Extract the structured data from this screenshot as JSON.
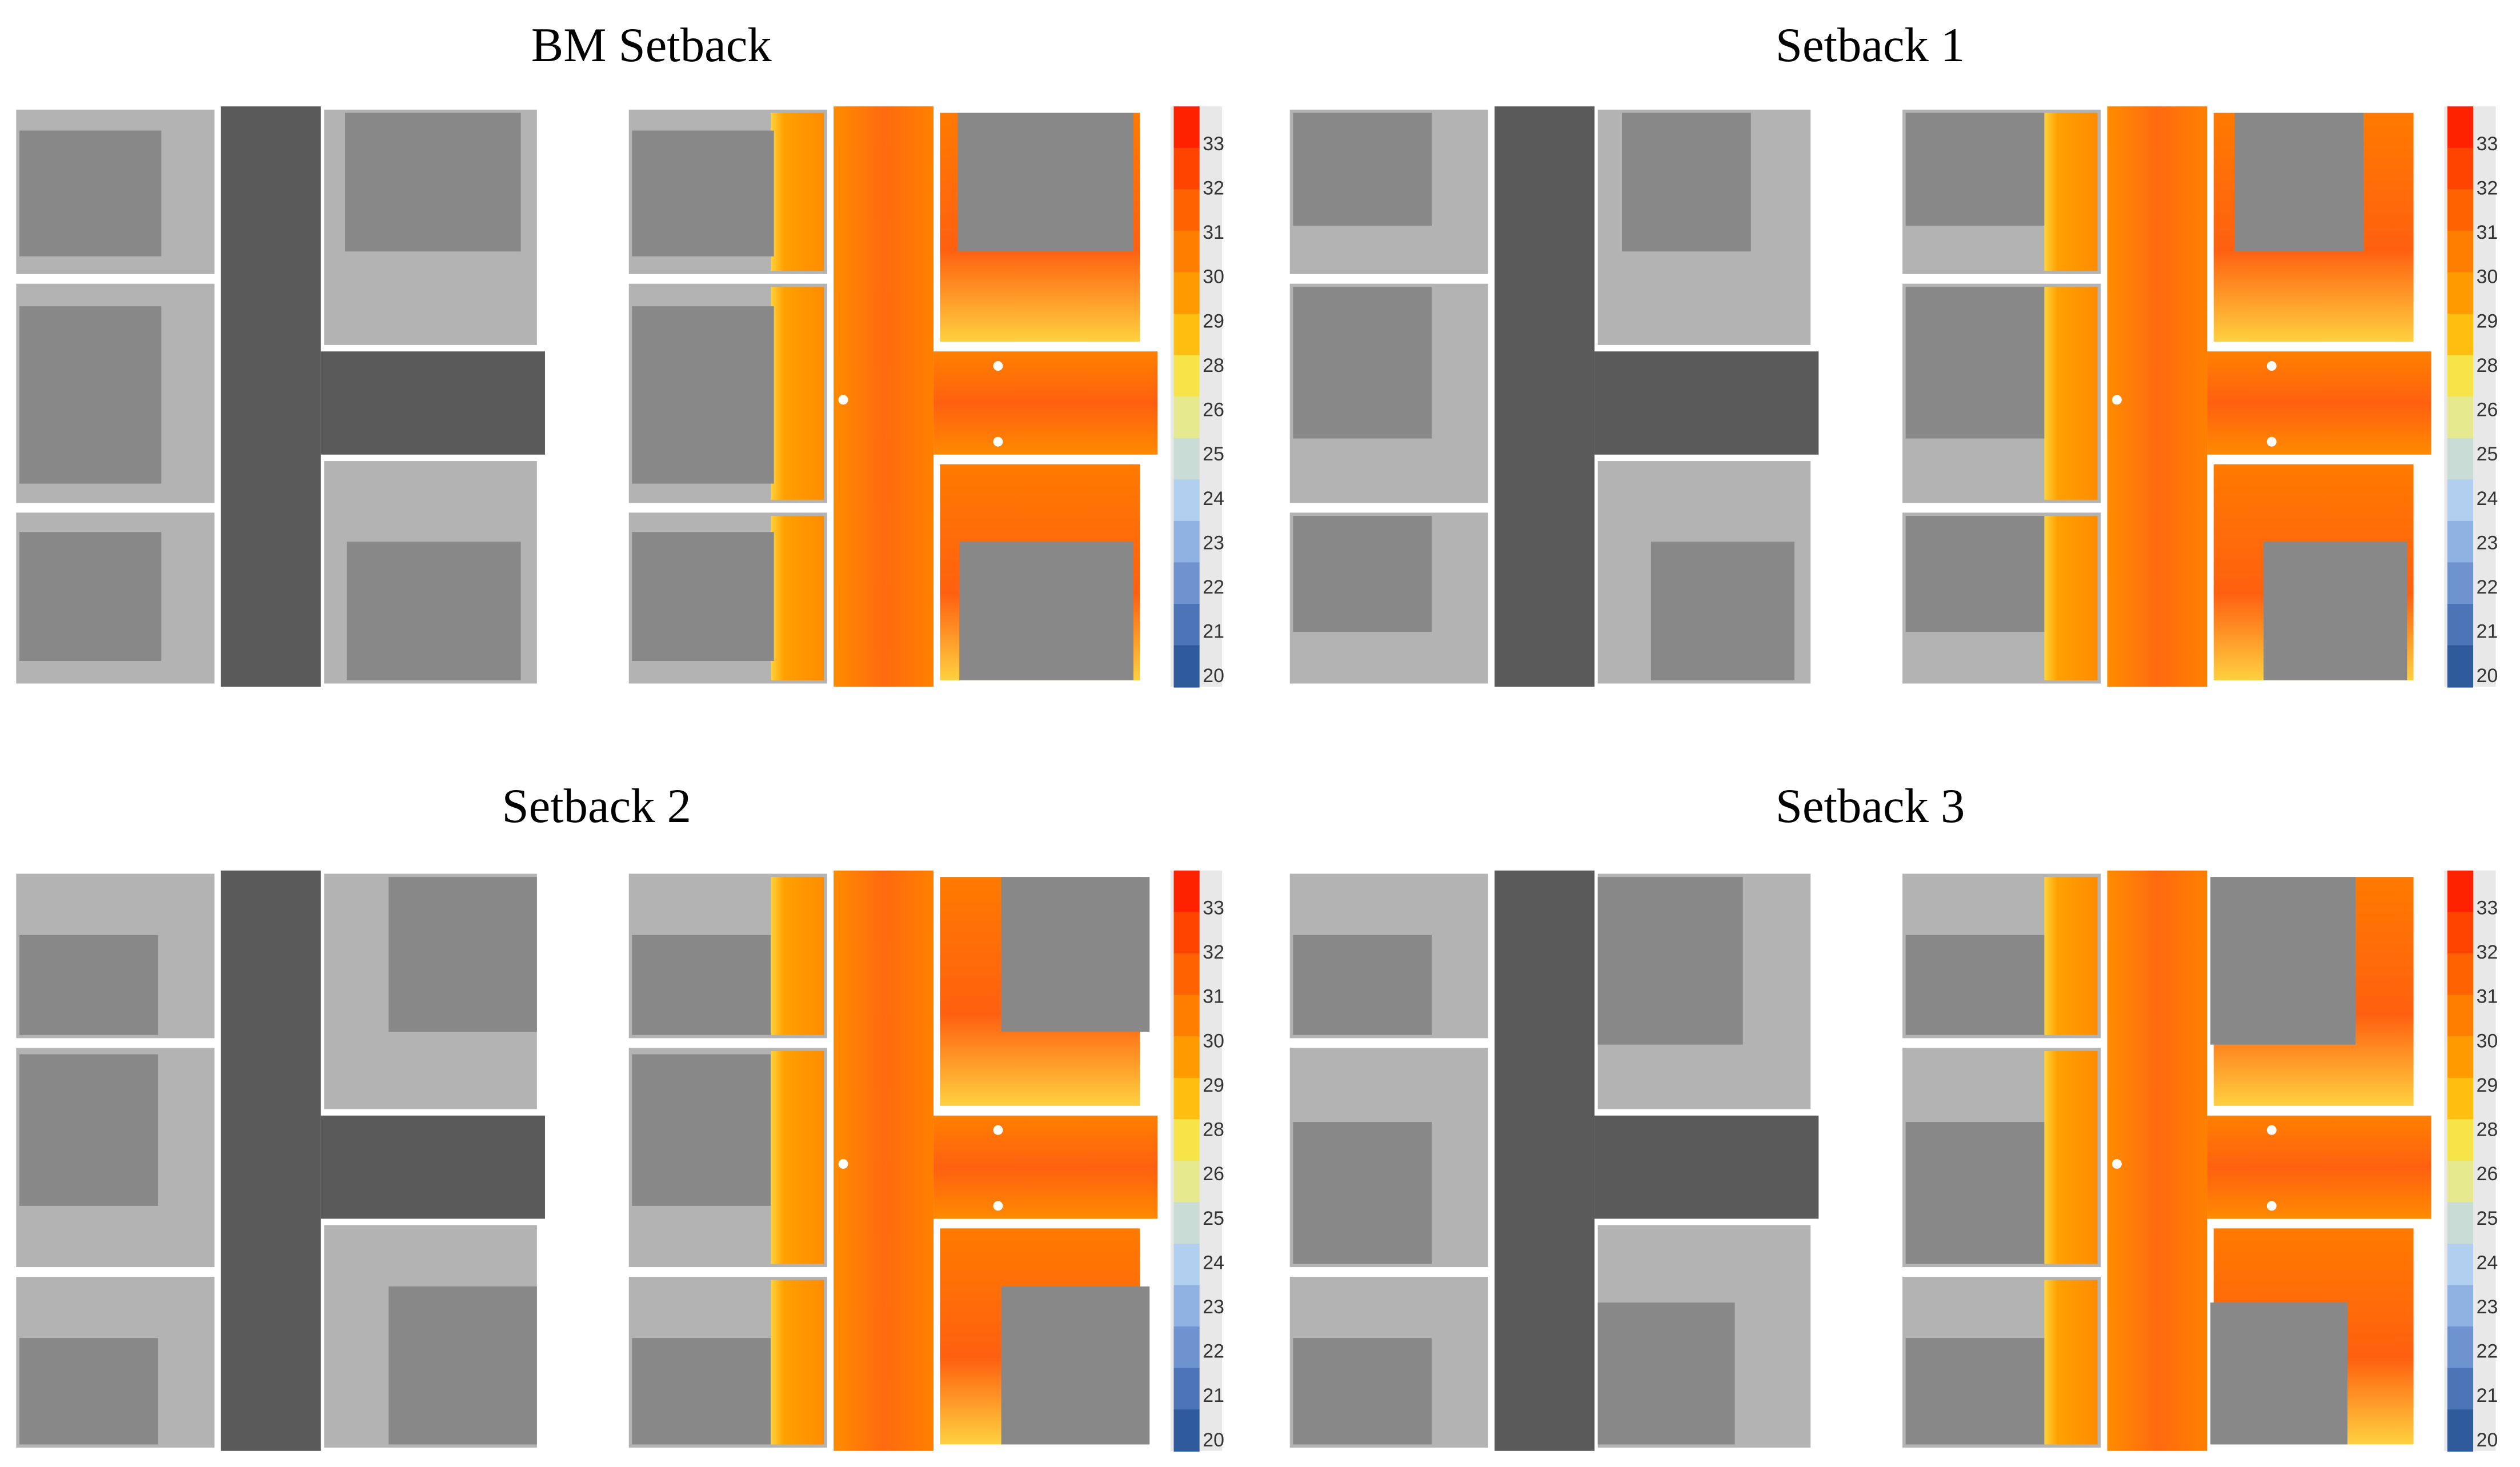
{
  "panels": [
    {
      "title": "BM Setback"
    },
    {
      "title": "Setback 1"
    },
    {
      "title": "Setback 2"
    },
    {
      "title": "Setback 3"
    }
  ],
  "colorbar": {
    "labels": [
      33,
      32,
      31,
      30,
      29,
      28,
      26,
      25,
      24,
      23,
      22,
      21,
      20
    ]
  }
}
